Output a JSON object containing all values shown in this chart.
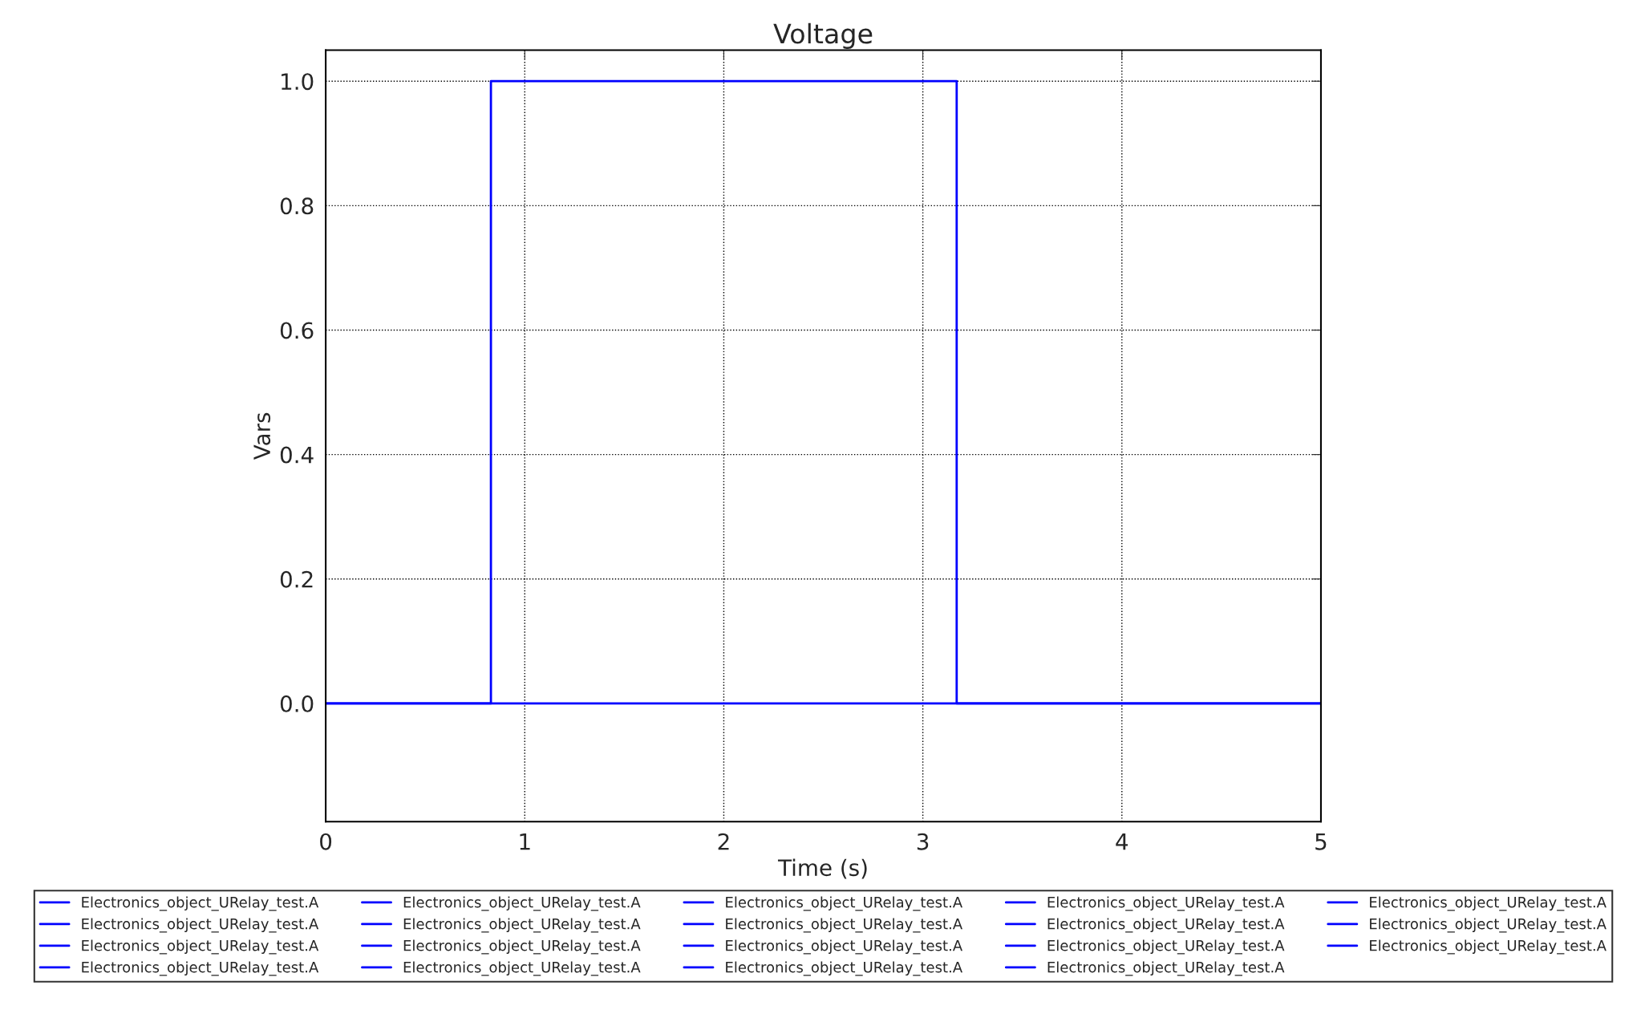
{
  "chart_data": {
    "type": "line",
    "title": "Voltage",
    "xlabel": "Time (s)",
    "ylabel": "Vars",
    "xlim": [
      0,
      5
    ],
    "xticks": [
      0,
      1,
      2,
      3,
      4,
      5
    ],
    "ylim": [
      -0.19,
      1.05
    ],
    "yticks": [
      {
        "value": 0,
        "label": "0.0"
      },
      0.2,
      0.4,
      0.6,
      0.8,
      {
        "value": 1,
        "label": "1.0"
      }
    ],
    "grid": true,
    "legend": "bottom",
    "line_style": "solid",
    "marker": "none",
    "series": [
      {
        "name": "Electronics_object_URelay_test.A",
        "color": "#0000ff",
        "x": [
          0,
          0.83,
          0.83,
          3.17,
          3.17,
          5
        ],
        "values": [
          0,
          0,
          1,
          1,
          0,
          0
        ]
      },
      {
        "name": "Electronics_object_URelay_test.A",
        "color": "#0000ff",
        "x": [
          0,
          5
        ],
        "values": [
          0,
          0
        ]
      },
      {
        "name": "Electronics_object_URelay_test.A",
        "color": "#0000ff"
      },
      {
        "name": "Electronics_object_URelay_test.A",
        "color": "#0000ff"
      },
      {
        "name": "Electronics_object_URelay_test.A",
        "color": "#0000ff"
      },
      {
        "name": "Electronics_object_URelay_test.A",
        "color": "#0000ff"
      },
      {
        "name": "Electronics_object_URelay_test.A",
        "color": "#0000ff"
      },
      {
        "name": "Electronics_object_URelay_test.A",
        "color": "#0000ff"
      },
      {
        "name": "Electronics_object_URelay_test.A",
        "color": "#0000ff"
      },
      {
        "name": "Electronics_object_URelay_test.A",
        "color": "#0000ff"
      },
      {
        "name": "Electronics_object_URelay_test.A",
        "color": "#0000ff"
      },
      {
        "name": "Electronics_object_URelay_test.A",
        "color": "#0000ff"
      },
      {
        "name": "Electronics_object_URelay_test.A",
        "color": "#0000ff"
      },
      {
        "name": "Electronics_object_URelay_test.A",
        "color": "#0000ff"
      },
      {
        "name": "Electronics_object_URelay_test.A",
        "color": "#0000ff"
      },
      {
        "name": "Electronics_object_URelay_test.A",
        "color": "#0000ff"
      },
      {
        "name": "Electronics_object_URelay_test.A",
        "color": "#0000ff"
      },
      {
        "name": "Electronics_object_URelay_test.A",
        "color": "#0000ff"
      },
      {
        "name": "Electronics_object_URelay_test.A",
        "color": "#0000ff"
      }
    ]
  }
}
